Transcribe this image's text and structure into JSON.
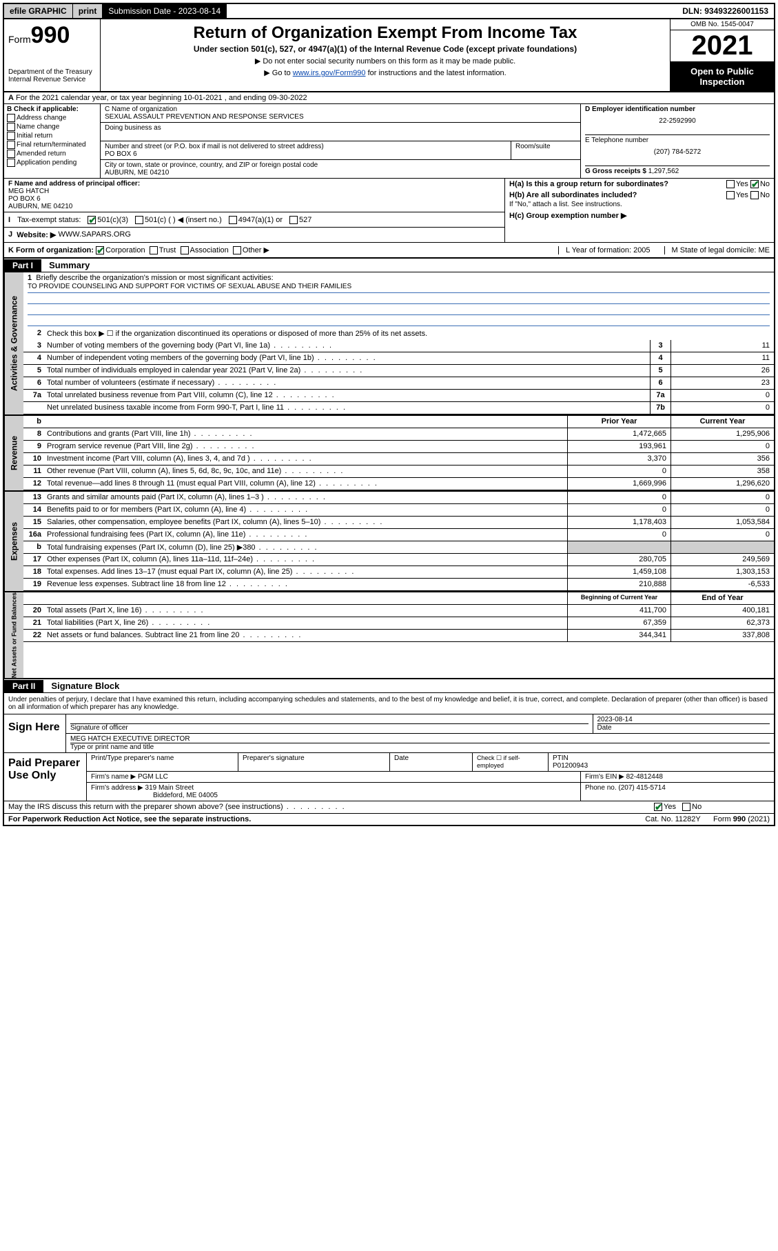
{
  "topbar": {
    "efile": "efile GRAPHIC",
    "print": "print",
    "subdate_label": "Submission Date - 2023-08-14",
    "dln": "DLN: 93493226001153"
  },
  "header": {
    "form_prefix": "Form",
    "form_number": "990",
    "dept": "Department of the Treasury",
    "irs": "Internal Revenue Service",
    "title": "Return of Organization Exempt From Income Tax",
    "subtitle": "Under section 501(c), 527, or 4947(a)(1) of the Internal Revenue Code (except private foundations)",
    "note1": "▶ Do not enter social security numbers on this form as it may be made public.",
    "note2_pre": "▶ Go to ",
    "note2_link": "www.irs.gov/Form990",
    "note2_post": " for instructions and the latest information.",
    "omb": "OMB No. 1545-0047",
    "year": "2021",
    "inspect": "Open to Public Inspection"
  },
  "row_a": "For the 2021 calendar year, or tax year beginning 10-01-2021   , and ending 09-30-2022",
  "box_b": {
    "label": "B Check if applicable:",
    "items": [
      "Address change",
      "Name change",
      "Initial return",
      "Final return/terminated",
      "Amended return",
      "Application pending"
    ]
  },
  "box_c": {
    "name_label": "C Name of organization",
    "name": "SEXUAL ASSAULT PREVENTION AND RESPONSE SERVICES",
    "dba_label": "Doing business as",
    "addr_label": "Number and street (or P.O. box if mail is not delivered to street address)",
    "room_label": "Room/suite",
    "addr": "PO BOX 6",
    "city_label": "City or town, state or province, country, and ZIP or foreign postal code",
    "city": "AUBURN, ME  04210"
  },
  "box_d": {
    "ein_label": "D Employer identification number",
    "ein": "22-2592990",
    "phone_label": "E Telephone number",
    "phone": "(207) 784-5272",
    "gross_label": "G Gross receipts $",
    "gross": "1,297,562"
  },
  "box_f": {
    "label": "F Name and address of principal officer:",
    "name": "MEG HATCH",
    "addr1": "PO BOX 6",
    "addr2": "AUBURN, ME  04210"
  },
  "box_h": {
    "ha": "H(a)  Is this a group return for subordinates?",
    "hb": "H(b)  Are all subordinates included?",
    "hb_note": "If \"No,\" attach a list. See instructions.",
    "hc": "H(c)  Group exemption number ▶",
    "yes": "Yes",
    "no": "No"
  },
  "row_i": {
    "label": "Tax-exempt status:",
    "opt1": "501(c)(3)",
    "opt2": "501(c) (  ) ◀ (insert no.)",
    "opt3": "4947(a)(1) or",
    "opt4": "527"
  },
  "row_j": {
    "label": "Website: ▶",
    "value": "WWW.SAPARS.ORG"
  },
  "row_k": {
    "label": "K Form of organization:",
    "opts": [
      "Corporation",
      "Trust",
      "Association",
      "Other ▶"
    ],
    "l": "L Year of formation: 2005",
    "m": "M State of legal domicile: ME"
  },
  "part1": {
    "header": "Part I",
    "title": "Summary"
  },
  "summary": {
    "q1_label": "Briefly describe the organization's mission or most significant activities:",
    "q1_text": "TO PROVIDE COUNSELING AND SUPPORT FOR VICTIMS OF SEXUAL ABUSE AND THEIR FAMILIES",
    "q2": "Check this box ▶ ☐  if the organization discontinued its operations or disposed of more than 25% of its net assets.",
    "lines_gov": [
      {
        "n": "3",
        "d": "Number of voting members of the governing body (Part VI, line 1a)",
        "b": "3",
        "v": "11"
      },
      {
        "n": "4",
        "d": "Number of independent voting members of the governing body (Part VI, line 1b)",
        "b": "4",
        "v": "11"
      },
      {
        "n": "5",
        "d": "Total number of individuals employed in calendar year 2021 (Part V, line 2a)",
        "b": "5",
        "v": "26"
      },
      {
        "n": "6",
        "d": "Total number of volunteers (estimate if necessary)",
        "b": "6",
        "v": "23"
      },
      {
        "n": "7a",
        "d": "Total unrelated business revenue from Part VIII, column (C), line 12",
        "b": "7a",
        "v": "0"
      },
      {
        "n": "",
        "d": "Net unrelated business taxable income from Form 990-T, Part I, line 11",
        "b": "7b",
        "v": "0"
      }
    ],
    "col_hdr_prior": "Prior Year",
    "col_hdr_current": "Current Year",
    "revenue": [
      {
        "n": "8",
        "d": "Contributions and grants (Part VIII, line 1h)",
        "p": "1,472,665",
        "c": "1,295,906"
      },
      {
        "n": "9",
        "d": "Program service revenue (Part VIII, line 2g)",
        "p": "193,961",
        "c": "0"
      },
      {
        "n": "10",
        "d": "Investment income (Part VIII, column (A), lines 3, 4, and 7d )",
        "p": "3,370",
        "c": "356"
      },
      {
        "n": "11",
        "d": "Other revenue (Part VIII, column (A), lines 5, 6d, 8c, 9c, 10c, and 11e)",
        "p": "0",
        "c": "358"
      },
      {
        "n": "12",
        "d": "Total revenue—add lines 8 through 11 (must equal Part VIII, column (A), line 12)",
        "p": "1,669,996",
        "c": "1,296,620"
      }
    ],
    "expenses": [
      {
        "n": "13",
        "d": "Grants and similar amounts paid (Part IX, column (A), lines 1–3 )",
        "p": "0",
        "c": "0"
      },
      {
        "n": "14",
        "d": "Benefits paid to or for members (Part IX, column (A), line 4)",
        "p": "0",
        "c": "0"
      },
      {
        "n": "15",
        "d": "Salaries, other compensation, employee benefits (Part IX, column (A), lines 5–10)",
        "p": "1,178,403",
        "c": "1,053,584"
      },
      {
        "n": "16a",
        "d": "Professional fundraising fees (Part IX, column (A), line 11e)",
        "p": "0",
        "c": "0"
      },
      {
        "n": "b",
        "d": "Total fundraising expenses (Part IX, column (D), line 25) ▶380",
        "p": "",
        "c": "",
        "shaded": true
      },
      {
        "n": "17",
        "d": "Other expenses (Part IX, column (A), lines 11a–11d, 11f–24e)",
        "p": "280,705",
        "c": "249,569"
      },
      {
        "n": "18",
        "d": "Total expenses. Add lines 13–17 (must equal Part IX, column (A), line 25)",
        "p": "1,459,108",
        "c": "1,303,153"
      },
      {
        "n": "19",
        "d": "Revenue less expenses. Subtract line 18 from line 12",
        "p": "210,888",
        "c": "-6,533"
      }
    ],
    "col_hdr_begin": "Beginning of Current Year",
    "col_hdr_end": "End of Year",
    "netassets": [
      {
        "n": "20",
        "d": "Total assets (Part X, line 16)",
        "p": "411,700",
        "c": "400,181"
      },
      {
        "n": "21",
        "d": "Total liabilities (Part X, line 26)",
        "p": "67,359",
        "c": "62,373"
      },
      {
        "n": "22",
        "d": "Net assets or fund balances. Subtract line 21 from line 20",
        "p": "344,341",
        "c": "337,808"
      }
    ],
    "vtabs": {
      "gov": "Activities & Governance",
      "rev": "Revenue",
      "exp": "Expenses",
      "net": "Net Assets or Fund Balances"
    }
  },
  "part2": {
    "header": "Part II",
    "title": "Signature Block"
  },
  "sig": {
    "perjury": "Under penalties of perjury, I declare that I have examined this return, including accompanying schedules and statements, and to the best of my knowledge and belief, it is true, correct, and complete. Declaration of preparer (other than officer) is based on all information of which preparer has any knowledge.",
    "sign_here": "Sign Here",
    "sig_officer": "Signature of officer",
    "date": "Date",
    "sig_date": "2023-08-14",
    "name_title": "MEG HATCH  EXECUTIVE DIRECTOR",
    "name_title_label": "Type or print name and title"
  },
  "paid": {
    "label": "Paid Preparer Use Only",
    "h1": "Print/Type preparer's name",
    "h2": "Preparer's signature",
    "h3": "Date",
    "h4_pre": "Check ☐ if self-employed",
    "h5": "PTIN",
    "ptin": "P01200943",
    "firm_name_label": "Firm's name   ▶",
    "firm_name": "PGM LLC",
    "firm_ein_label": "Firm's EIN ▶",
    "firm_ein": "82-4812448",
    "firm_addr_label": "Firm's address ▶",
    "firm_addr1": "319 Main Street",
    "firm_addr2": "Biddeford, ME  04005",
    "phone_label": "Phone no.",
    "phone": "(207) 415-5714"
  },
  "footer": {
    "discuss": "May the IRS discuss this return with the preparer shown above? (see instructions)",
    "yes": "Yes",
    "no": "No",
    "paperwork": "For Paperwork Reduction Act Notice, see the separate instructions.",
    "cat": "Cat. No. 11282Y",
    "form": "Form 990 (2021)"
  },
  "colors": {
    "header_bg": "#cfcfcf",
    "black": "#000000",
    "link": "#0645ad",
    "mission_rule": "#3a6db5",
    "check_green": "#0a7a2a"
  }
}
